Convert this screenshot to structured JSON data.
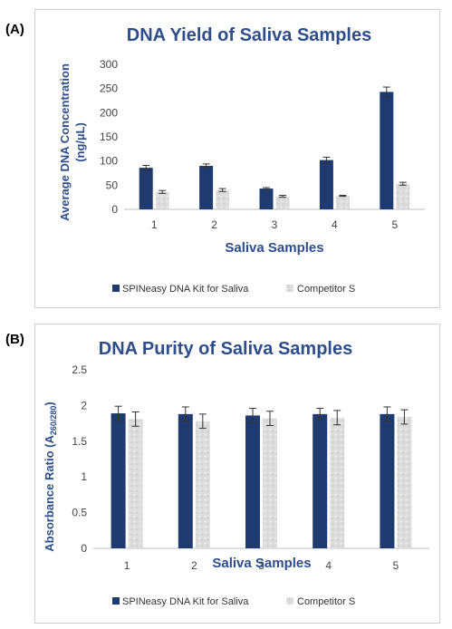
{
  "panels": [
    {
      "label": "(A)"
    },
    {
      "label": "(B)"
    }
  ],
  "colors": {
    "spineasy": "#1f3a6e",
    "competitor": "#d6d6d6",
    "title": "#2e4d8a",
    "axis_title": "#2e4d8a",
    "tick": "#444444",
    "error": "#333333"
  },
  "chart_data": [
    {
      "type": "bar",
      "title": "DNA Yield of Saliva Samples",
      "xlabel": "Saliva Samples",
      "ylabel_line1": "Average DNA Concentration",
      "ylabel_line2": "(ng/µL)",
      "categories": [
        "1",
        "2",
        "3",
        "4",
        "5"
      ],
      "ylim": [
        0,
        300
      ],
      "yticks": [
        "0",
        "50",
        "100",
        "150",
        "200",
        "250",
        "300"
      ],
      "grid": false,
      "legend_position": "bottom",
      "series": [
        {
          "name": "SPINeasy DNA Kit for Saliva",
          "values": [
            86,
            90,
            43,
            102,
            243
          ],
          "errors": [
            5,
            4,
            2,
            6,
            10
          ]
        },
        {
          "name": "Competitor S",
          "values": [
            36,
            40,
            27,
            28,
            53
          ],
          "errors": [
            3,
            3,
            2,
            1,
            3
          ]
        }
      ]
    },
    {
      "type": "bar",
      "title": "DNA Purity of Saliva Samples",
      "xlabel": "Saliva Samples",
      "ylabel_prefix": "Absorbance Ratio (A",
      "ylabel_sub": "260/280",
      "ylabel_suffix": ")",
      "categories": [
        "1",
        "2",
        "3",
        "4",
        "5"
      ],
      "ylim": [
        0,
        2.5
      ],
      "yticks": [
        "0",
        "0.5",
        "1",
        "1.5",
        "2",
        "2.5"
      ],
      "grid": false,
      "legend_position": "bottom",
      "series": [
        {
          "name": "SPINeasy DNA Kit for Saliva",
          "values": [
            1.89,
            1.88,
            1.86,
            1.88,
            1.88
          ],
          "errors": [
            0.1,
            0.1,
            0.1,
            0.08,
            0.1
          ]
        },
        {
          "name": "Competitor S",
          "values": [
            1.81,
            1.78,
            1.82,
            1.83,
            1.84
          ],
          "errors": [
            0.1,
            0.1,
            0.1,
            0.1,
            0.1
          ]
        }
      ]
    }
  ]
}
